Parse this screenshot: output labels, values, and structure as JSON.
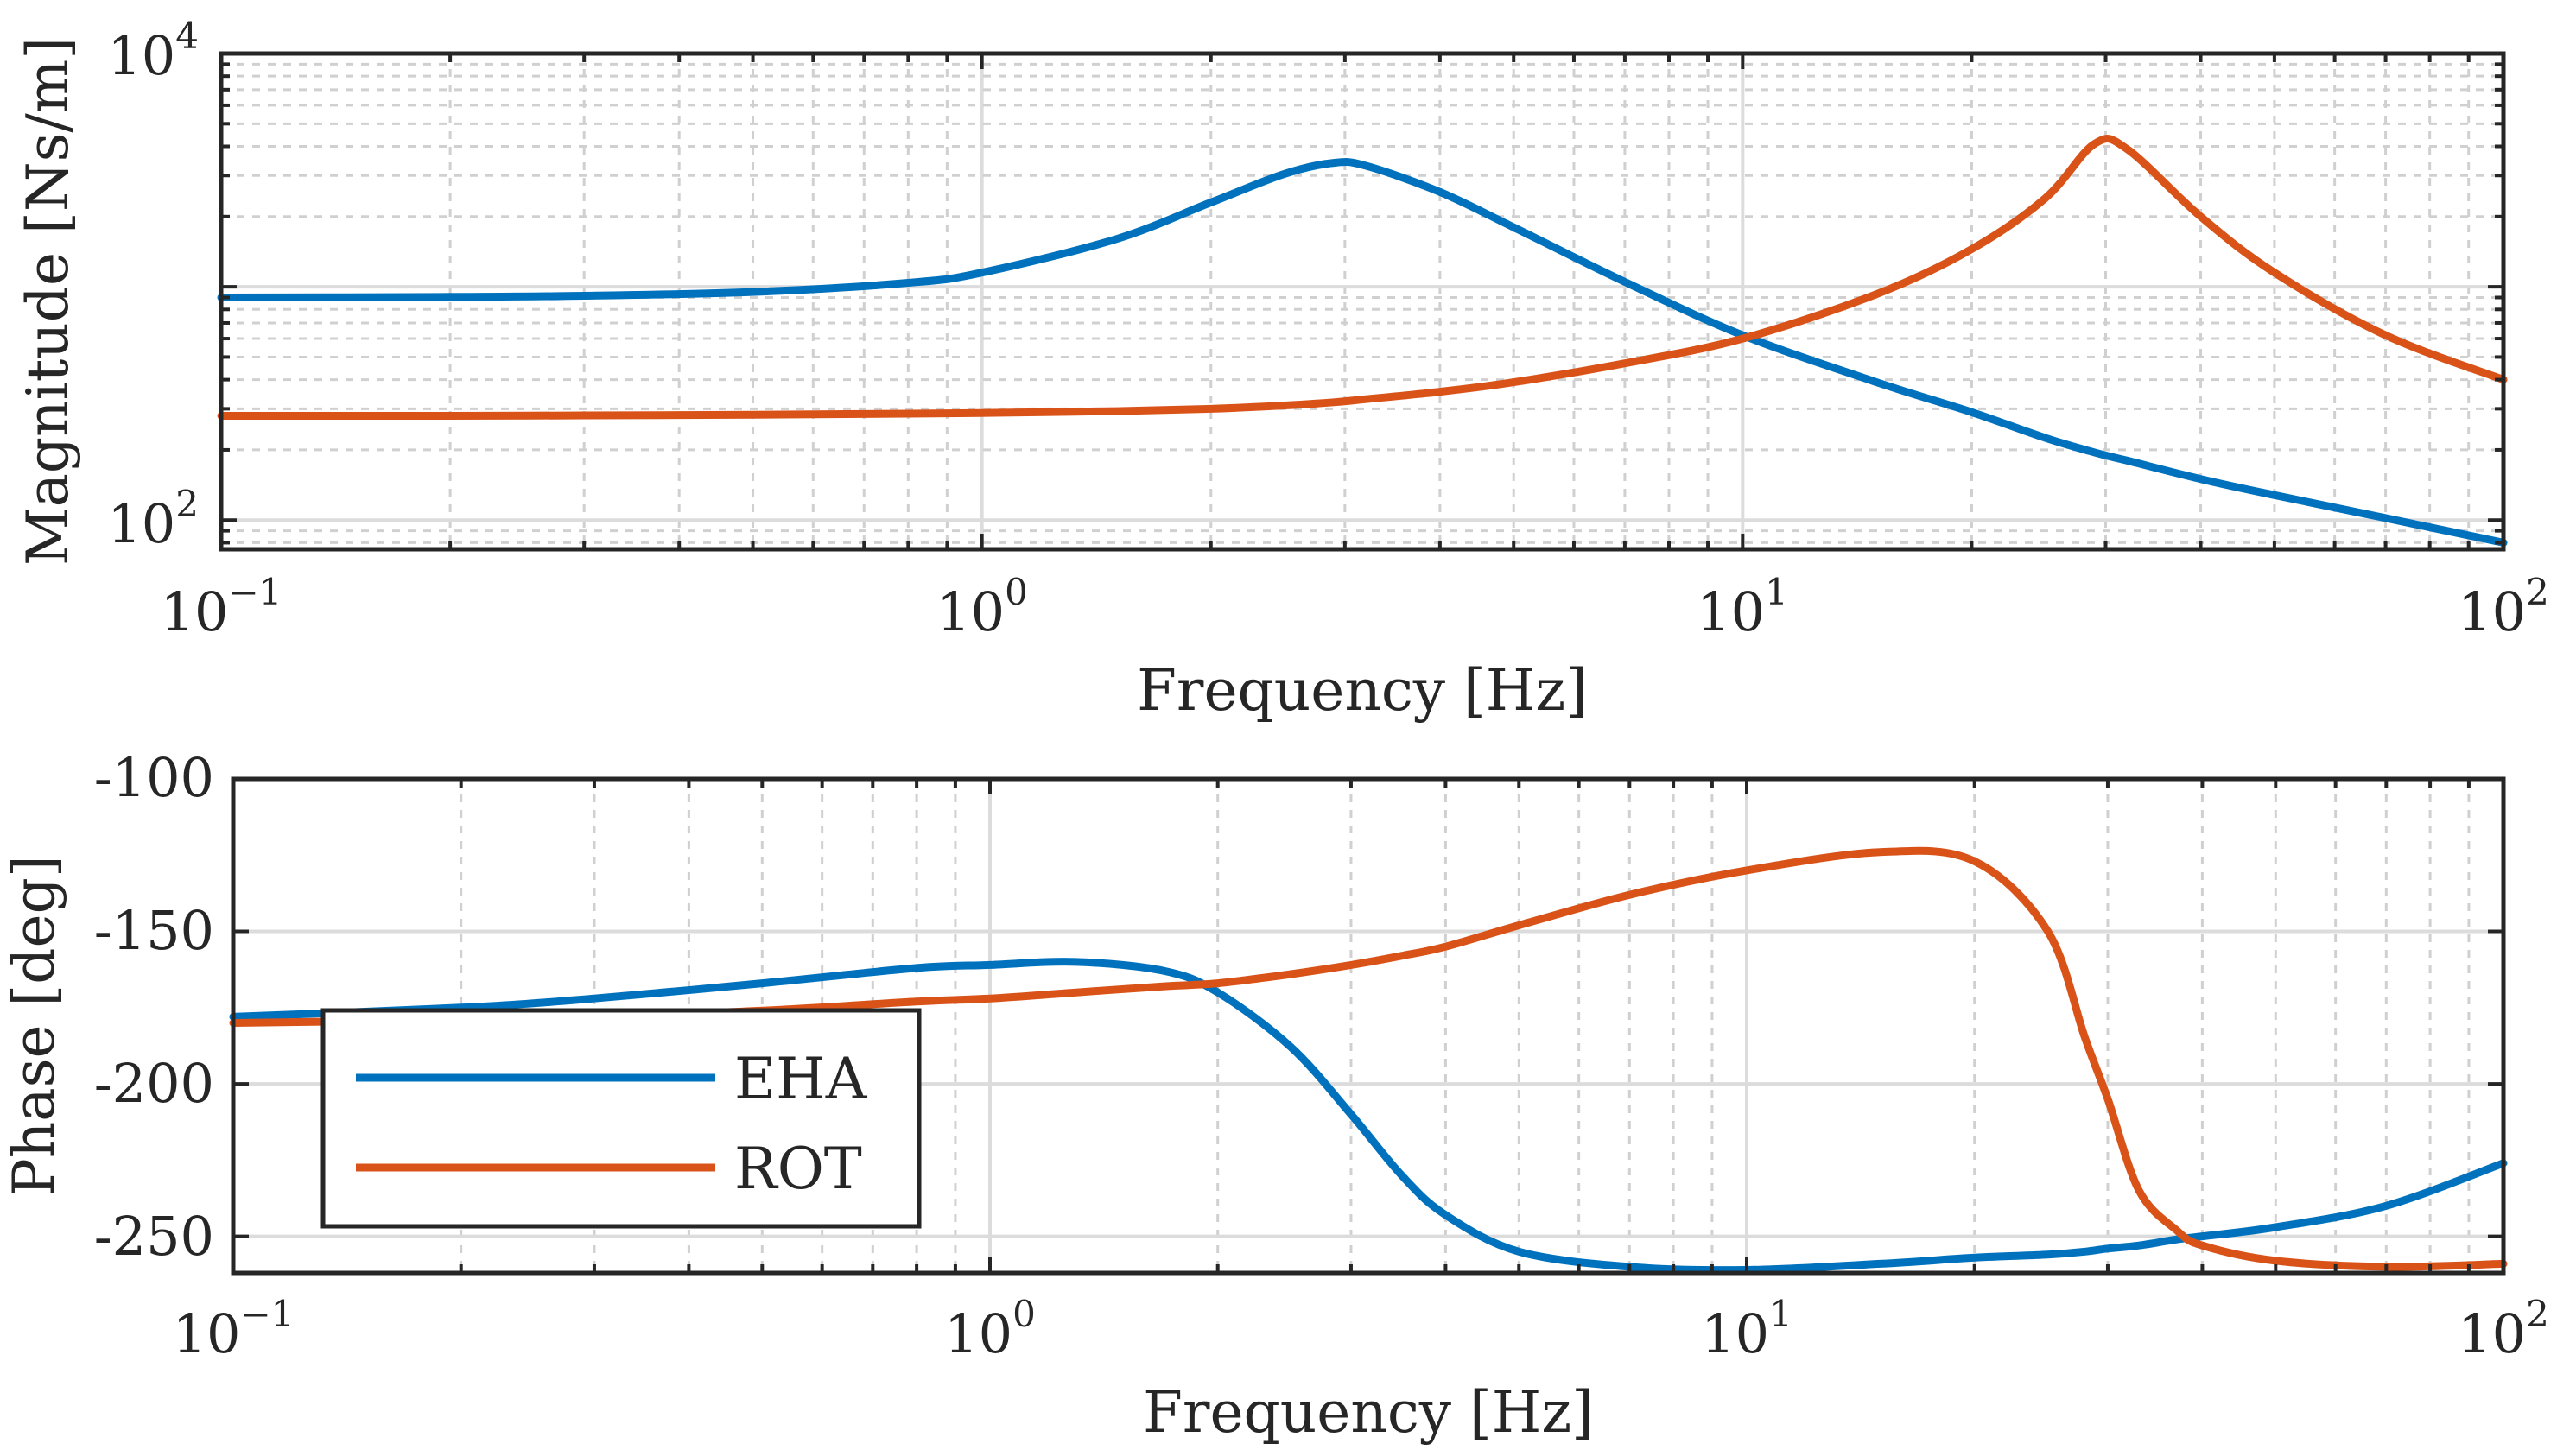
{
  "chart_data": [
    {
      "type": "line",
      "id": "magnitude",
      "xscale": "log",
      "yscale": "log",
      "xlabel": "Frequency [Hz]",
      "ylabel": "Magnitude [Ns/m]",
      "xlim": [
        0.1,
        100
      ],
      "ylim": [
        75,
        10000
      ],
      "grid": true,
      "x_ticks": [
        {
          "base": "10",
          "exp": "−1",
          "value": 0.1
        },
        {
          "base": "10",
          "exp": "0",
          "value": 1
        },
        {
          "base": "10",
          "exp": "1",
          "value": 10
        },
        {
          "base": "10",
          "exp": "2",
          "value": 100
        }
      ],
      "y_ticks": [
        {
          "base": "10",
          "exp": "2",
          "value": 100
        },
        {
          "base": "10",
          "exp": "4",
          "value": 10000
        }
      ],
      "x": [
        0.1,
        0.2,
        0.3,
        0.5,
        0.8,
        1.0,
        1.5,
        2.0,
        2.5,
        2.9,
        3.2,
        4.0,
        5.0,
        7.0,
        10,
        15,
        20,
        25,
        29,
        32,
        40,
        50,
        70,
        100
      ],
      "series": [
        {
          "name": "EHA",
          "color": "#0072BD",
          "values": [
            900,
            905,
            915,
            950,
            1040,
            1150,
            1600,
            2300,
            3050,
            3400,
            3300,
            2550,
            1800,
            1050,
            620,
            390,
            290,
            225,
            195,
            180,
            150,
            128,
            102,
            80
          ]
        },
        {
          "name": "ROT",
          "color": "#D95319",
          "values": [
            280,
            280,
            281,
            283,
            286,
            288,
            293,
            300,
            310,
            320,
            330,
            355,
            390,
            470,
            600,
            930,
            1450,
            2400,
            4100,
            3900,
            2000,
            1150,
            620,
            400
          ]
        }
      ]
    },
    {
      "type": "line",
      "id": "phase",
      "xscale": "log",
      "yscale": "linear",
      "xlabel": "Frequency [Hz]",
      "ylabel": "Phase [deg]",
      "xlim": [
        0.1,
        100
      ],
      "ylim": [
        -262,
        -100
      ],
      "grid": true,
      "x_ticks": [
        {
          "base": "10",
          "exp": "−1",
          "value": 0.1
        },
        {
          "base": "10",
          "exp": "0",
          "value": 1
        },
        {
          "base": "10",
          "exp": "1",
          "value": 10
        },
        {
          "base": "10",
          "exp": "2",
          "value": 100
        }
      ],
      "y_ticks": [
        {
          "label": "-100",
          "value": -100
        },
        {
          "label": "-150",
          "value": -150
        },
        {
          "label": "-200",
          "value": -200
        },
        {
          "label": "-250",
          "value": -250
        }
      ],
      "legend": {
        "position": "bottom-left",
        "entries": [
          "EHA",
          "ROT"
        ]
      },
      "x": [
        0.1,
        0.2,
        0.3,
        0.5,
        0.8,
        1.0,
        1.3,
        1.7,
        2.0,
        2.5,
        3.0,
        3.5,
        4.0,
        5.0,
        7.0,
        10,
        15,
        20,
        25,
        28,
        30,
        33,
        37,
        40,
        50,
        70,
        100
      ],
      "series": [
        {
          "name": "EHA",
          "color": "#0072BD",
          "values": [
            -178,
            -175,
            -172,
            -167,
            -162,
            -161,
            -160,
            -163,
            -170,
            -188,
            -210,
            -230,
            -243,
            -255,
            -260,
            -261,
            -259,
            -257,
            -256,
            -255,
            -254,
            -253,
            -251,
            -250,
            -247,
            -240,
            -226
          ]
        },
        {
          "name": "ROT",
          "color": "#D95319",
          "values": [
            -180,
            -179,
            -178,
            -176,
            -173,
            -172,
            -170,
            -168,
            -167,
            -164,
            -161,
            -158,
            -155,
            -148,
            -138,
            -130,
            -124,
            -127,
            -150,
            -185,
            -205,
            -235,
            -248,
            -253,
            -258,
            -260,
            -259
          ]
        }
      ]
    }
  ]
}
